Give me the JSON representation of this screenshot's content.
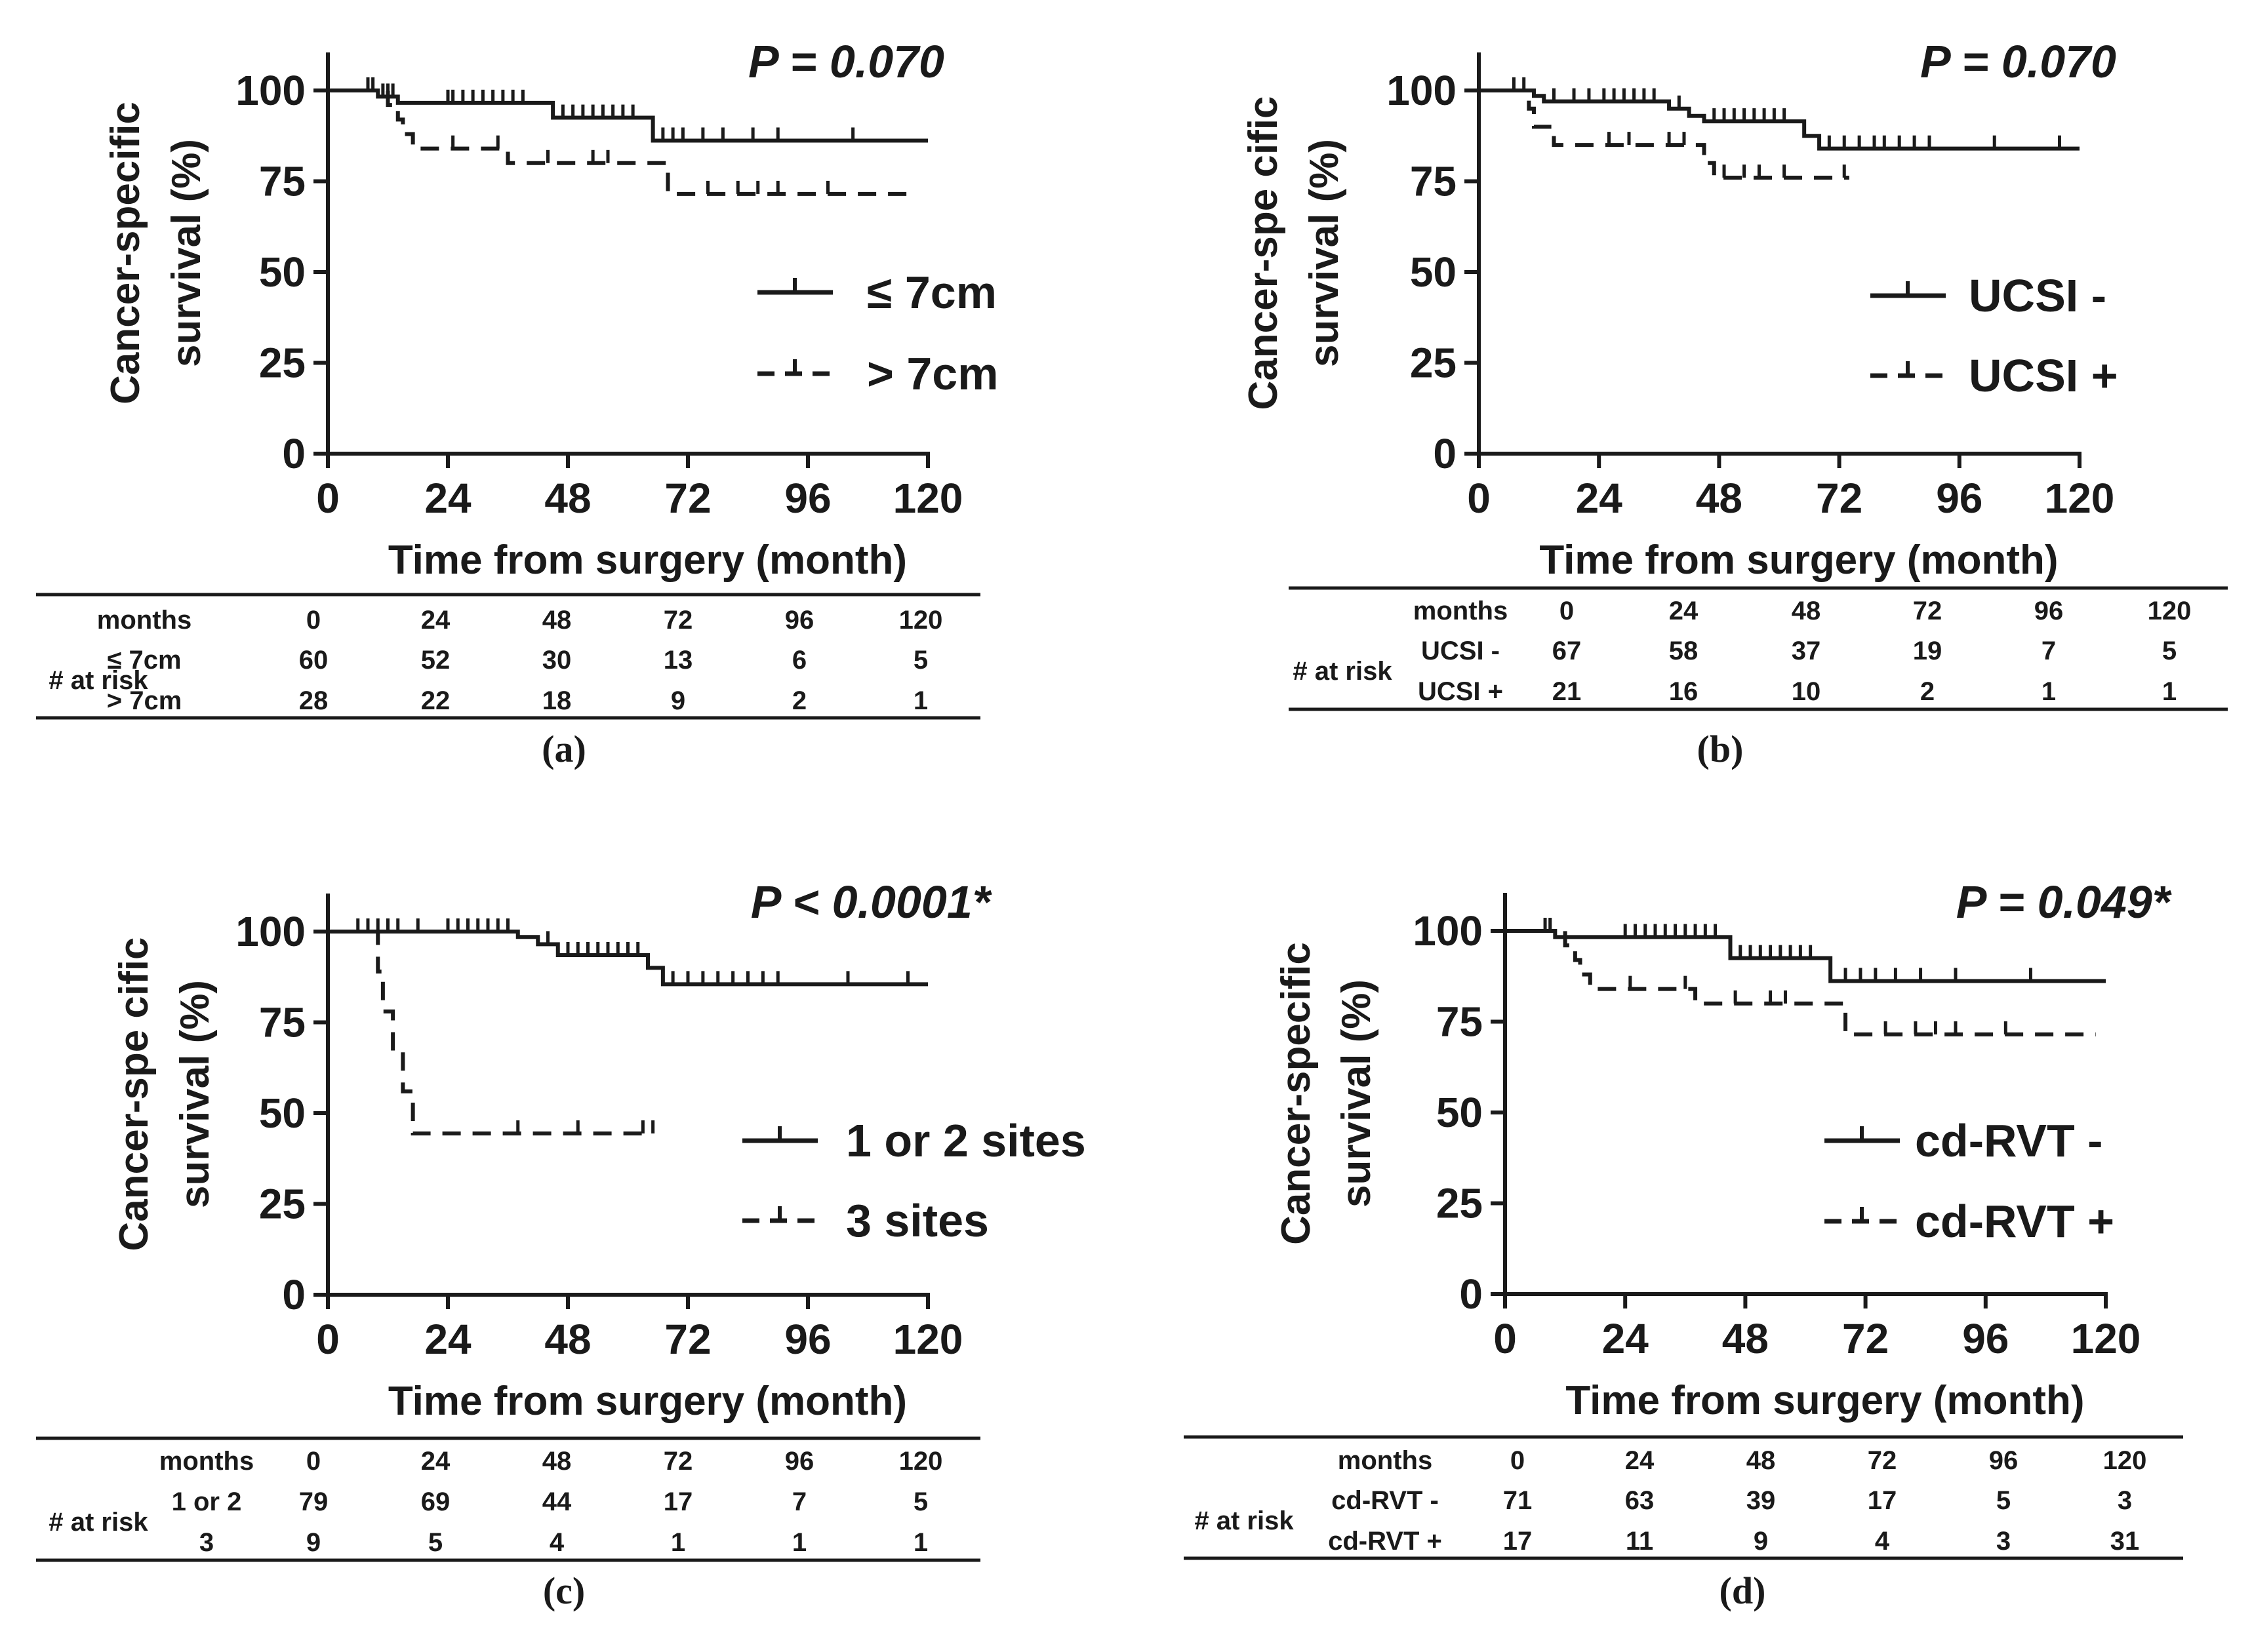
{
  "chart_data": [
    {
      "type": "line",
      "panel": "a",
      "title": "",
      "caption": "(a)",
      "p_value": "P = 0.070",
      "xlabel": "Time from surgery (month)",
      "ylabel_line1": "Cancer-specific",
      "ylabel_line2": "survival (%)",
      "xlim": [
        0,
        120
      ],
      "ylim": [
        0,
        100
      ],
      "xticks": [
        "0",
        "24",
        "48",
        "72",
        "96",
        "120"
      ],
      "yticks": [
        "0",
        "25",
        "50",
        "75",
        "100"
      ],
      "legend_position": "center-right",
      "series": [
        {
          "name": "≤ 7cm",
          "style": "solid",
          "steps": [
            [
              0,
              100
            ],
            [
              10,
              98.3
            ],
            [
              14,
              96.6
            ],
            [
              45,
              92.5
            ],
            [
              65,
              86.2
            ],
            [
              120,
              86.2
            ]
          ],
          "censors": [
            [
              8,
              100
            ],
            [
              9,
              100
            ],
            [
              11,
              98.3
            ],
            [
              12,
              98.3
            ],
            [
              13,
              98.3
            ],
            [
              24,
              96.6
            ],
            [
              25,
              96.6
            ],
            [
              27,
              96.6
            ],
            [
              29,
              96.6
            ],
            [
              31,
              96.6
            ],
            [
              33,
              96.6
            ],
            [
              35,
              96.6
            ],
            [
              37,
              96.6
            ],
            [
              39,
              96.6
            ],
            [
              47,
              92.5
            ],
            [
              49,
              92.5
            ],
            [
              51,
              92.5
            ],
            [
              53,
              92.5
            ],
            [
              55,
              92.5
            ],
            [
              57,
              92.5
            ],
            [
              59,
              92.5
            ],
            [
              61,
              92.5
            ],
            [
              67,
              86.2
            ],
            [
              69,
              86.2
            ],
            [
              71,
              86.2
            ],
            [
              75,
              86.2
            ],
            [
              79,
              86.2
            ],
            [
              85,
              86.2
            ],
            [
              90,
              86.2
            ],
            [
              105,
              86.2
            ]
          ]
        },
        {
          "name": "> 7cm",
          "style": "dashed",
          "steps": [
            [
              0,
              100
            ],
            [
              12,
              96
            ],
            [
              14,
              92
            ],
            [
              15,
              88
            ],
            [
              17,
              84
            ],
            [
              36,
              80
            ],
            [
              68,
              71.5
            ],
            [
              118,
              71.5
            ]
          ],
          "censors": [
            [
              25,
              84
            ],
            [
              34,
              84
            ],
            [
              44,
              80
            ],
            [
              53,
              80
            ],
            [
              56,
              80
            ],
            [
              76,
              71.5
            ],
            [
              82,
              71.5
            ],
            [
              86,
              71.5
            ],
            [
              90,
              71.5
            ],
            [
              100,
              71.5
            ]
          ]
        }
      ],
      "risk_table": {
        "header": "months",
        "group_label": "# at risk",
        "times": [
          "0",
          "24",
          "48",
          "72",
          "96",
          "120"
        ],
        "rows": [
          {
            "label": "≤ 7cm",
            "values": [
              "60",
              "52",
              "30",
              "13",
              "6",
              "5"
            ]
          },
          {
            "label": "> 7cm",
            "values": [
              "28",
              "22",
              "18",
              "9",
              "2",
              "1"
            ]
          }
        ]
      }
    },
    {
      "type": "line",
      "panel": "b",
      "title": "",
      "caption": "(b)",
      "p_value": "P = 0.070",
      "xlabel": "Time from surgery (month)",
      "ylabel_line1": "Cancer-spe cific",
      "ylabel_line2": "survival (%)",
      "xlim": [
        0,
        120
      ],
      "ylim": [
        0,
        100
      ],
      "xticks": [
        "0",
        "24",
        "48",
        "72",
        "96",
        "120"
      ],
      "yticks": [
        "0",
        "25",
        "50",
        "75",
        "100"
      ],
      "legend_position": "center-right",
      "series": [
        {
          "name": "UCSI -",
          "style": "solid",
          "steps": [
            [
              0,
              100
            ],
            [
              11,
              98.5
            ],
            [
              13,
              97
            ],
            [
              38,
              95
            ],
            [
              42,
              93
            ],
            [
              45,
              91.5
            ],
            [
              65,
              87.5
            ],
            [
              68,
              84
            ],
            [
              120,
              84
            ]
          ],
          "censors": [
            [
              7,
              100
            ],
            [
              9,
              100
            ],
            [
              15,
              97
            ],
            [
              19,
              97
            ],
            [
              22,
              97
            ],
            [
              25,
              97
            ],
            [
              27,
              97
            ],
            [
              29,
              97
            ],
            [
              31,
              97
            ],
            [
              33,
              97
            ],
            [
              35,
              97
            ],
            [
              40,
              95
            ],
            [
              47,
              91.5
            ],
            [
              49,
              91.5
            ],
            [
              51,
              91.5
            ],
            [
              53,
              91.5
            ],
            [
              55,
              91.5
            ],
            [
              57,
              91.5
            ],
            [
              59,
              91.5
            ],
            [
              61,
              91.5
            ],
            [
              70,
              84
            ],
            [
              73,
              84
            ],
            [
              76,
              84
            ],
            [
              79,
              84
            ],
            [
              81,
              84
            ],
            [
              84,
              84
            ],
            [
              87,
              84
            ],
            [
              90,
              84
            ],
            [
              103,
              84
            ],
            [
              116,
              84
            ]
          ]
        },
        {
          "name": "UCSI +",
          "style": "dashed",
          "steps": [
            [
              0,
              100
            ],
            [
              10,
              95
            ],
            [
              11,
              90
            ],
            [
              15,
              85
            ],
            [
              45,
              80
            ],
            [
              47,
              76
            ],
            [
              74,
              76
            ]
          ],
          "censors": [
            [
              26,
              85
            ],
            [
              30,
              85
            ],
            [
              38,
              85
            ],
            [
              41,
              85
            ],
            [
              49,
              76
            ],
            [
              53,
              76
            ],
            [
              56,
              76
            ],
            [
              61,
              76
            ],
            [
              73,
              76
            ]
          ]
        }
      ],
      "risk_table": {
        "header": "months",
        "group_label": "# at risk",
        "times": [
          "0",
          "24",
          "48",
          "72",
          "96",
          "120"
        ],
        "rows": [
          {
            "label": "UCSI -",
            "values": [
              "67",
              "58",
              "37",
              "19",
              "7",
              "5"
            ]
          },
          {
            "label": "UCSI +",
            "values": [
              "21",
              "16",
              "10",
              "2",
              "1",
              "1"
            ]
          }
        ]
      }
    },
    {
      "type": "line",
      "panel": "c",
      "title": "",
      "caption": "(c)",
      "p_value": "P < 0.0001*",
      "xlabel": "Time from surgery (month)",
      "ylabel_line1": "Cancer-spe cific",
      "ylabel_line2": "survival (%)",
      "xlim": [
        0,
        120
      ],
      "ylim": [
        0,
        100
      ],
      "xticks": [
        "0",
        "24",
        "48",
        "72",
        "96",
        "120"
      ],
      "yticks": [
        "0",
        "25",
        "50",
        "75",
        "100"
      ],
      "legend_position": "center-right",
      "series": [
        {
          "name": "1 or 2 sites",
          "style": "solid",
          "steps": [
            [
              0,
              100
            ],
            [
              38,
              98.5
            ],
            [
              42,
              96.5
            ],
            [
              46,
              93.5
            ],
            [
              64,
              90
            ],
            [
              67,
              85.5
            ],
            [
              120,
              85.5
            ]
          ],
          "censors": [
            [
              6,
              100
            ],
            [
              8,
              100
            ],
            [
              10,
              100
            ],
            [
              12,
              100
            ],
            [
              14,
              100
            ],
            [
              18,
              100
            ],
            [
              24,
              100
            ],
            [
              26,
              100
            ],
            [
              28,
              100
            ],
            [
              30,
              100
            ],
            [
              32,
              100
            ],
            [
              34,
              100
            ],
            [
              36,
              100
            ],
            [
              44,
              96.5
            ],
            [
              48,
              93.5
            ],
            [
              50,
              93.5
            ],
            [
              52,
              93.5
            ],
            [
              54,
              93.5
            ],
            [
              56,
              93.5
            ],
            [
              58,
              93.5
            ],
            [
              60,
              93.5
            ],
            [
              62,
              93.5
            ],
            [
              69,
              85.5
            ],
            [
              72,
              85.5
            ],
            [
              75,
              85.5
            ],
            [
              78,
              85.5
            ],
            [
              81,
              85.5
            ],
            [
              84,
              85.5
            ],
            [
              87,
              85.5
            ],
            [
              90,
              85.5
            ],
            [
              104,
              85.5
            ],
            [
              116,
              85.5
            ]
          ]
        },
        {
          "name": "3 sites",
          "style": "dashed",
          "steps": [
            [
              9,
              100
            ],
            [
              10,
              89
            ],
            [
              11,
              78
            ],
            [
              13,
              67
            ],
            [
              15,
              56
            ],
            [
              17,
              44.4
            ],
            [
              65,
              44.4
            ]
          ],
          "censors": [
            [
              38,
              44.4
            ],
            [
              50,
              44.4
            ],
            [
              63,
              44.4
            ],
            [
              65,
              44.4
            ]
          ]
        }
      ],
      "risk_table": {
        "header": "months",
        "group_label": "# at risk",
        "times": [
          "0",
          "24",
          "48",
          "72",
          "96",
          "120"
        ],
        "rows": [
          {
            "label": "1 or 2",
            "values": [
              "79",
              "69",
              "44",
              "17",
              "7",
              "5"
            ]
          },
          {
            "label": "3",
            "values": [
              "9",
              "5",
              "4",
              "1",
              "1",
              "1"
            ]
          }
        ]
      }
    },
    {
      "type": "line",
      "panel": "d",
      "title": "",
      "caption": "(d)",
      "p_value": "P = 0.049*",
      "xlabel": "Time from surgery (month)",
      "ylabel_line1": "Cancer-specific",
      "ylabel_line2": "survival (%)",
      "xlim": [
        0,
        120
      ],
      "ylim": [
        0,
        100
      ],
      "xticks": [
        "0",
        "24",
        "48",
        "72",
        "96",
        "120"
      ],
      "yticks": [
        "0",
        "25",
        "50",
        "75",
        "100"
      ],
      "legend_position": "center-right",
      "series": [
        {
          "name": "cd-RVT -",
          "style": "solid",
          "steps": [
            [
              0,
              100
            ],
            [
              10,
              98.3
            ],
            [
              45,
              92.5
            ],
            [
              65,
              86.2
            ],
            [
              120,
              86.2
            ]
          ],
          "censors": [
            [
              8,
              100
            ],
            [
              9,
              100
            ],
            [
              24,
              98.3
            ],
            [
              26,
              98.3
            ],
            [
              28,
              98.3
            ],
            [
              30,
              98.3
            ],
            [
              32,
              98.3
            ],
            [
              34,
              98.3
            ],
            [
              36,
              98.3
            ],
            [
              38,
              98.3
            ],
            [
              40,
              98.3
            ],
            [
              42,
              98.3
            ],
            [
              47,
              92.5
            ],
            [
              49,
              92.5
            ],
            [
              51,
              92.5
            ],
            [
              53,
              92.5
            ],
            [
              55,
              92.5
            ],
            [
              57,
              92.5
            ],
            [
              59,
              92.5
            ],
            [
              61,
              92.5
            ],
            [
              68,
              86.2
            ],
            [
              71,
              86.2
            ],
            [
              74,
              86.2
            ],
            [
              78,
              86.2
            ],
            [
              83,
              86.2
            ],
            [
              90,
              86.2
            ],
            [
              105,
              86.2
            ]
          ]
        },
        {
          "name": "cd-RVT +",
          "style": "dashed",
          "steps": [
            [
              0,
              100
            ],
            [
              12,
              96
            ],
            [
              14,
              92
            ],
            [
              15,
              88
            ],
            [
              17,
              84
            ],
            [
              38,
              80
            ],
            [
              68,
              71.5
            ],
            [
              118,
              71.5
            ]
          ],
          "censors": [
            [
              25,
              84
            ],
            [
              36,
              84
            ],
            [
              46,
              80
            ],
            [
              53,
              80
            ],
            [
              56,
              80
            ],
            [
              76,
              71.5
            ],
            [
              82,
              71.5
            ],
            [
              86,
              71.5
            ],
            [
              90,
              71.5
            ],
            [
              100,
              71.5
            ]
          ]
        }
      ],
      "risk_table": {
        "header": "months",
        "group_label": "# at risk",
        "times": [
          "0",
          "24",
          "48",
          "72",
          "96",
          "120"
        ],
        "rows": [
          {
            "label": "cd-RVT -",
            "values": [
              "71",
              "63",
              "39",
              "17",
              "5",
              "3"
            ]
          },
          {
            "label": "cd-RVT +",
            "values": [
              "17",
              "11",
              "9",
              "4",
              "3",
              "31"
            ]
          }
        ]
      }
    }
  ]
}
